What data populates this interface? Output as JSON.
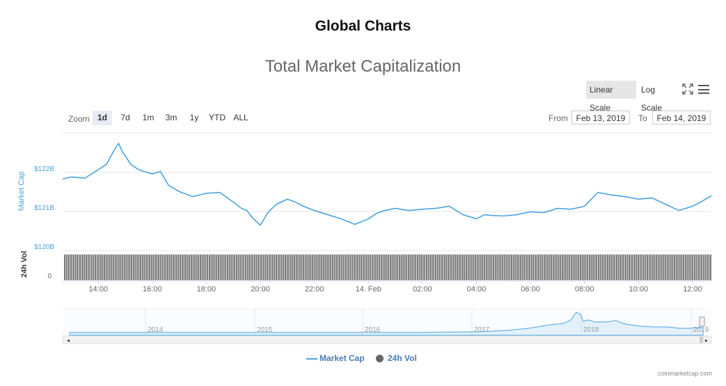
{
  "page_title": "Global Charts",
  "toolbar": {
    "linear_label": "Linear Scale",
    "log_label": "Log Scale",
    "fullscreen_icon": "expand-icon",
    "menu_icon": "hamburger-menu-icon"
  },
  "zoom": {
    "label": "Zoom",
    "buttons": [
      "1d",
      "7d",
      "1m",
      "3m",
      "1y",
      "YTD",
      "ALL"
    ],
    "active": "1d"
  },
  "range": {
    "from_label": "From",
    "from_value": "Feb 13, 2019",
    "to_label": "To",
    "to_value": "Feb 14, 2019"
  },
  "credits": "coinmarketcap.com",
  "colors": {
    "market_cap": "#4aa3df",
    "volume": "#666666",
    "axis_label": "#4aa3df"
  },
  "chart_data": {
    "type": "line",
    "title": "Total Market Capitalization",
    "ylabel": "Market Cap",
    "ylabel2": "24h Vol",
    "y_ticks": [
      "$122B",
      "$121B",
      "$120B"
    ],
    "y_ticks_values": [
      122,
      121,
      120
    ],
    "ylim": [
      120,
      122.8
    ],
    "vol_tick": "0",
    "x_ticks": [
      "14:00",
      "16:00",
      "18:00",
      "20:00",
      "22:00",
      "14. Feb",
      "02:00",
      "04:00",
      "06:00",
      "08:00",
      "10:00",
      "12:00"
    ],
    "x_ticks_hours": [
      14,
      16,
      18,
      20,
      22,
      24,
      26,
      28,
      30,
      32,
      34,
      36
    ],
    "x_range_hours": [
      12.68,
      36.7
    ],
    "series": [
      {
        "name": "Market Cap",
        "x_hours": [
          12.68,
          13.0,
          13.5,
          14.0,
          14.3,
          14.6,
          14.75,
          14.9,
          15.2,
          15.5,
          16.0,
          16.3,
          16.6,
          17.0,
          17.5,
          18.0,
          18.5,
          19.0,
          19.3,
          19.5,
          19.7,
          20.0,
          20.3,
          20.6,
          21.0,
          21.3,
          21.6,
          22.0,
          22.5,
          23.0,
          23.5,
          24.0,
          24.3,
          24.6,
          25.0,
          25.5,
          26.0,
          26.5,
          27.0,
          27.5,
          28.0,
          28.3,
          28.6,
          29.0,
          29.5,
          30.0,
          30.5,
          31.0,
          31.5,
          32.0,
          32.5,
          33.0,
          33.5,
          34.0,
          34.5,
          35.0,
          35.5,
          36.0,
          36.3,
          36.7
        ],
        "values": [
          121.7,
          121.75,
          121.72,
          121.92,
          122.05,
          122.4,
          122.55,
          122.35,
          122.05,
          121.92,
          121.82,
          121.88,
          121.55,
          121.4,
          121.28,
          121.36,
          121.38,
          121.15,
          121.0,
          120.95,
          120.78,
          120.6,
          120.92,
          121.1,
          121.22,
          121.15,
          121.05,
          120.95,
          120.85,
          120.75,
          120.62,
          120.75,
          120.88,
          120.95,
          121.0,
          120.95,
          120.98,
          121.0,
          121.05,
          120.85,
          120.75,
          120.85,
          120.83,
          120.82,
          120.85,
          120.92,
          120.9,
          121.0,
          120.98,
          121.05,
          121.38,
          121.32,
          121.28,
          121.22,
          121.25,
          121.1,
          120.95,
          121.05,
          121.15,
          121.3
        ]
      },
      {
        "name": "24h Vol",
        "values_relative": 0.95
      }
    ],
    "navigator": {
      "year_labels": [
        "2014",
        "2015",
        "2016",
        "2017",
        "2018",
        "2019"
      ]
    }
  },
  "legend": {
    "market_cap": "Market Cap",
    "vol": "24h Vol"
  }
}
